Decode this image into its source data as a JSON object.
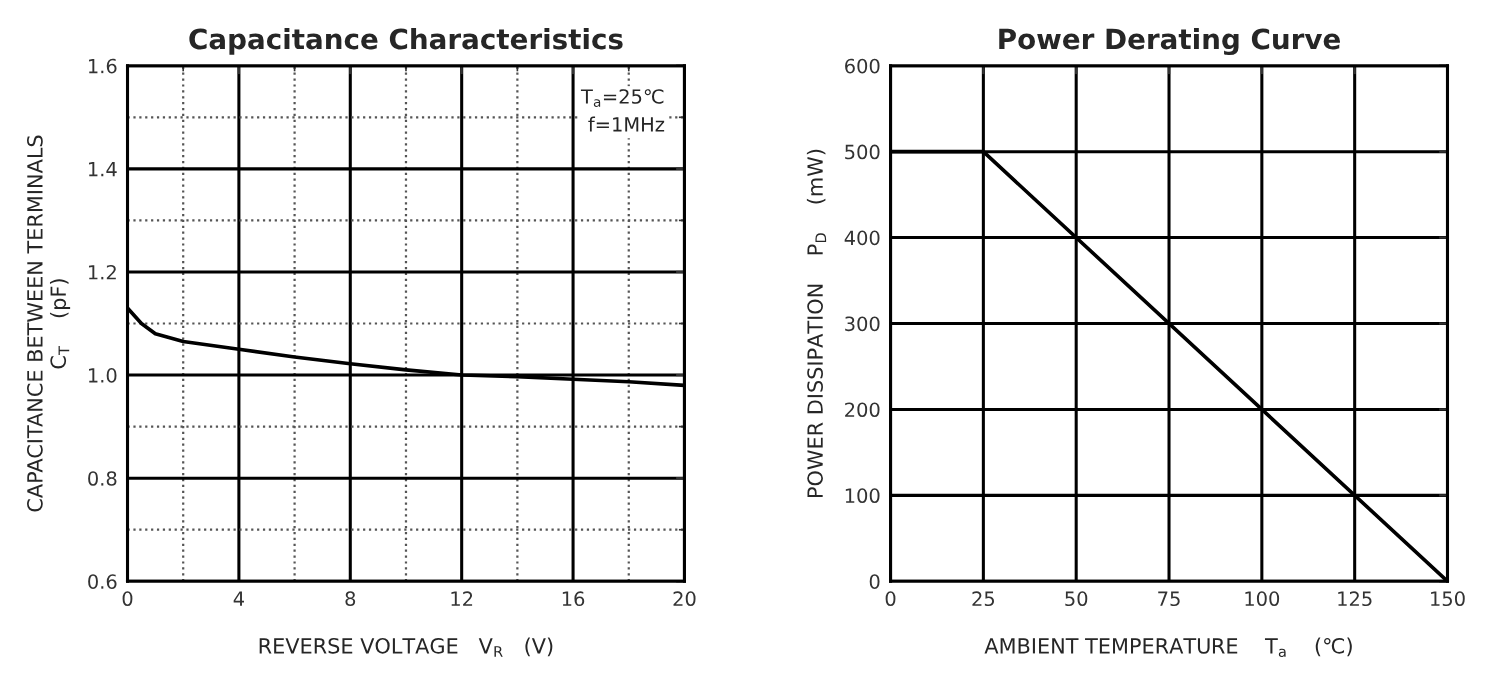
{
  "chart_data": [
    {
      "type": "line",
      "title": "Capacitance Characteristics",
      "xlabel": "REVERSE VOLTAGE   V$_{R}$   (V)",
      "ylabel": "CAPACITANCE BETWEEN TERMINALS\nC$_{T}$    (pF)",
      "x": [
        0,
        0.5,
        1,
        2,
        4,
        6,
        8,
        10,
        12,
        14,
        16,
        18,
        20
      ],
      "series": [
        {
          "color": "#000000",
          "values": [
            1.13,
            1.1,
            1.08,
            1.065,
            1.05,
            1.035,
            1.022,
            1.01,
            1.0,
            0.997,
            0.992,
            0.987,
            0.98
          ]
        }
      ],
      "xlim": [
        0,
        20
      ],
      "xticks": [
        0,
        {
          "value": 2,
          "label": null
        },
        4,
        {
          "value": 6,
          "label": null
        },
        8,
        {
          "value": 10,
          "label": null
        },
        12,
        {
          "value": 14,
          "label": null
        },
        16,
        {
          "value": 18,
          "label": null
        },
        20
      ],
      "ylim": [
        0.6,
        1.6
      ],
      "yticks": [
        0.6,
        {
          "value": 0.7,
          "label": null
        },
        0.8,
        {
          "value": 0.9,
          "label": null
        },
        {
          "value": 1.0,
          "label": "1.0"
        },
        {
          "value": 1.1,
          "label": null
        },
        1.2,
        {
          "value": 1.3,
          "label": null
        },
        1.4,
        {
          "value": 1.5,
          "label": null
        },
        1.6
      ],
      "grid": true,
      "marker": "none",
      "line_style": "solid",
      "annotations": [
        "T$_{a}$=25℃\nf=1MHz"
      ]
    },
    {
      "type": "line",
      "title": "Power Derating Curve",
      "xlabel": "AMBIENT TEMPERATURE    T$_{a}$    (℃)",
      "ylabel": "POWER DISSIPATION    P$_{D}$    (mW)",
      "x": [
        0,
        25,
        150
      ],
      "series": [
        {
          "color": "#000000",
          "values": [
            500,
            500,
            0
          ]
        }
      ],
      "xlim": [
        0,
        150
      ],
      "xticks": [
        0,
        25,
        50,
        75,
        100,
        125,
        150
      ],
      "ylim": [
        0,
        600
      ],
      "yticks": [
        0,
        100,
        200,
        300,
        400,
        500,
        600
      ],
      "grid": true,
      "marker": "none",
      "line_style": "solid"
    }
  ]
}
